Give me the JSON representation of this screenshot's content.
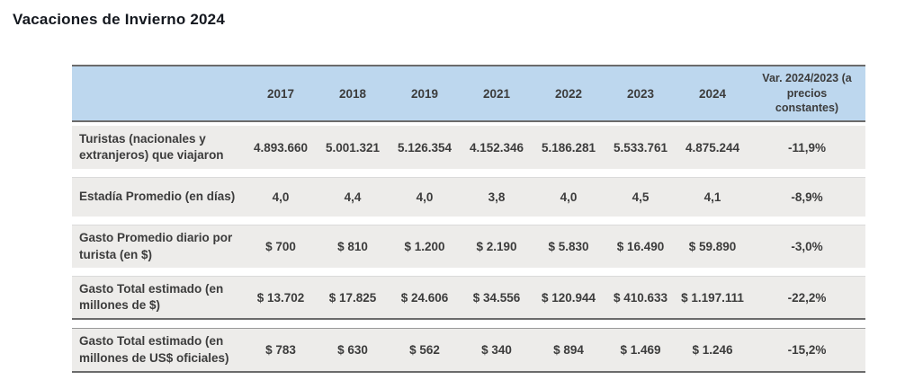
{
  "page": {
    "title": "Vacaciones de Invierno 2024"
  },
  "table": {
    "column_headers": [
      "2017",
      "2018",
      "2019",
      "2021",
      "2022",
      "2023",
      "2024"
    ],
    "var_column_header": "Var. 2024/2023 (a precios constantes)",
    "rows": [
      {
        "label": "Turistas (nacionales y extranjeros) que viajaron",
        "values": [
          "4.893.660",
          "5.001.321",
          "5.126.354",
          "4.152.346",
          "5.186.281",
          "5.533.761",
          "4.875.244"
        ],
        "var": "-11,9%"
      },
      {
        "label": "Estadía Promedio (en días)",
        "values": [
          "4,0",
          "4,4",
          "4,0",
          "3,8",
          "4,0",
          "4,5",
          "4,1"
        ],
        "var": "-8,9%"
      },
      {
        "label": "Gasto Promedio diario por turista (en $)",
        "values": [
          "$ 700",
          "$ 810",
          "$ 1.200",
          "$ 2.190",
          "$ 5.830",
          "$ 16.490",
          "$ 59.890"
        ],
        "var": "-3,0%"
      },
      {
        "label": "Gasto Total estimado (en millones de $)",
        "values": [
          "$ 13.702",
          "$ 17.825",
          "$ 24.606",
          "$ 34.556",
          "$ 120.944",
          "$ 410.633",
          "$ 1.197.111"
        ],
        "var": "-22,2%"
      },
      {
        "label": "Gasto Total estimado (en millones de US$ oficiales)",
        "values": [
          "$ 783",
          "$ 630",
          "$ 562",
          "$ 340",
          "$ 894",
          "$ 1.469",
          "$ 1.246"
        ],
        "var": "-15,2%"
      }
    ],
    "colors": {
      "header_bg": "#bdd7ee",
      "row_bg": "#edecea",
      "border_dark": "#6b6b6b",
      "text": "#3c3c3c"
    }
  },
  "chart_data": {
    "type": "table",
    "title": "Vacaciones de Invierno 2024",
    "columns": [
      "",
      "2017",
      "2018",
      "2019",
      "2021",
      "2022",
      "2023",
      "2024",
      "Var. 2024/2023 (a precios constantes)"
    ],
    "rows": [
      [
        "Turistas (nacionales y extranjeros) que viajaron",
        4893660,
        5001321,
        5126354,
        4152346,
        5186281,
        5533761,
        4875244,
        "-11,9%"
      ],
      [
        "Estadía Promedio (en días)",
        4.0,
        4.4,
        4.0,
        3.8,
        4.0,
        4.5,
        4.1,
        "-8,9%"
      ],
      [
        "Gasto Promedio diario por turista (en $)",
        700,
        810,
        1200,
        2190,
        5830,
        16490,
        59890,
        "-3,0%"
      ],
      [
        "Gasto Total estimado (en millones de $)",
        13702,
        17825,
        24606,
        34556,
        120944,
        410633,
        1197111,
        "-22,2%"
      ],
      [
        "Gasto Total estimado (en millones de US$ oficiales)",
        783,
        630,
        562,
        340,
        894,
        1469,
        1246,
        "-15,2%"
      ]
    ]
  }
}
